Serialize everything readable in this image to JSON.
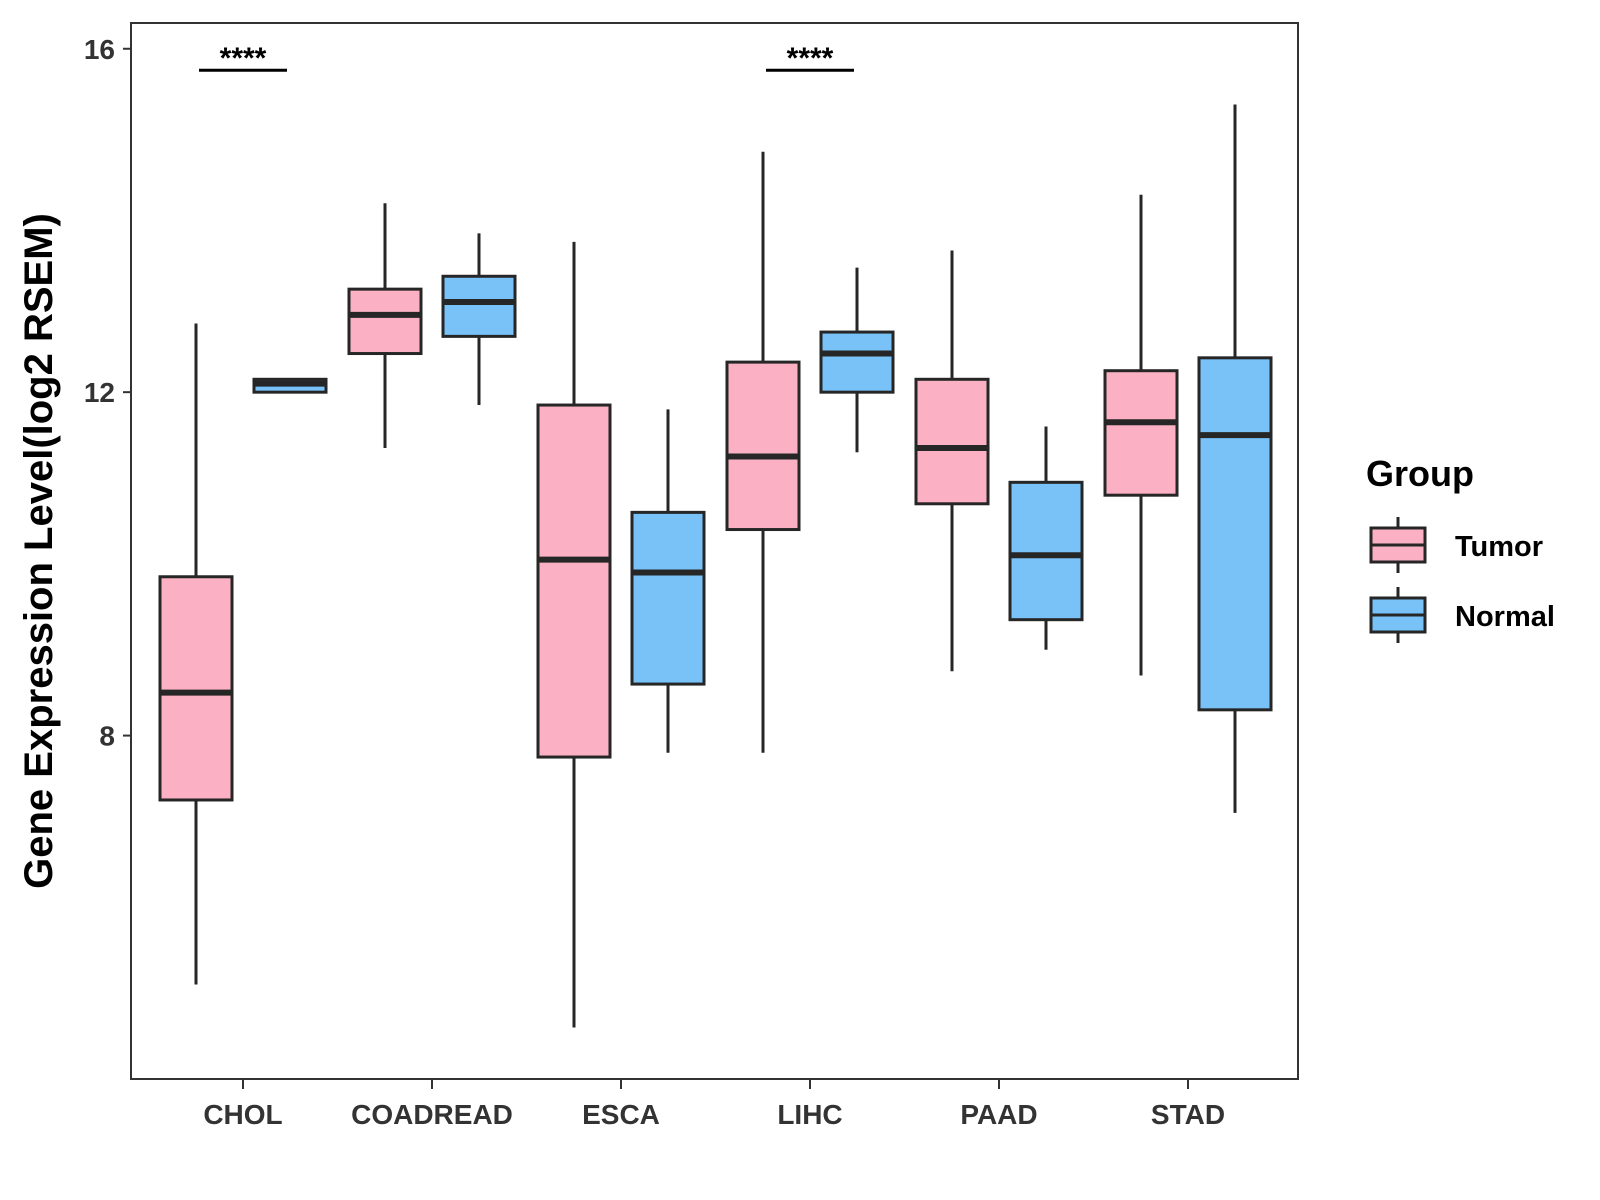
{
  "chart_data": {
    "type": "boxplot",
    "title": "",
    "xlabel": "",
    "ylabel": "Gene Expression Level(log2 RSEM)",
    "ylim": [
      4.0,
      16.3
    ],
    "yticks": [
      8,
      12,
      16
    ],
    "categories": [
      "CHOL",
      "COADREAD",
      "ESCA",
      "LIHC",
      "PAAD",
      "STAD"
    ],
    "legend": {
      "title": "Group",
      "position": "right",
      "entries": [
        {
          "name": "Tumor",
          "color": "#FBB1C3"
        },
        {
          "name": "Normal",
          "color": "#78C2F8"
        }
      ]
    },
    "series": [
      {
        "name": "Tumor",
        "color": "#FBB1C3",
        "boxes": [
          {
            "min": 5.1,
            "q1": 7.25,
            "median": 8.5,
            "q3": 9.85,
            "max": 12.8
          },
          {
            "min": 11.35,
            "q1": 12.45,
            "median": 12.9,
            "q3": 13.2,
            "max": 14.2
          },
          {
            "min": 4.6,
            "q1": 7.75,
            "median": 10.05,
            "q3": 11.85,
            "max": 13.75
          },
          {
            "min": 7.8,
            "q1": 10.4,
            "median": 11.25,
            "q3": 12.35,
            "max": 14.8
          },
          {
            "min": 8.75,
            "q1": 10.7,
            "median": 11.35,
            "q3": 12.15,
            "max": 13.65
          },
          {
            "min": 8.7,
            "q1": 10.8,
            "median": 11.65,
            "q3": 12.25,
            "max": 14.3
          }
        ]
      },
      {
        "name": "Normal",
        "color": "#78C2F8",
        "boxes": [
          {
            "min": 12.0,
            "q1": 12.0,
            "median": 12.1,
            "q3": 12.15,
            "max": 12.15
          },
          {
            "min": 11.85,
            "q1": 12.65,
            "median": 13.05,
            "q3": 13.35,
            "max": 13.85
          },
          {
            "min": 7.8,
            "q1": 8.6,
            "median": 9.9,
            "q3": 10.6,
            "max": 11.8
          },
          {
            "min": 11.3,
            "q1": 12.0,
            "median": 12.45,
            "q3": 12.7,
            "max": 13.45
          },
          {
            "min": 9.0,
            "q1": 9.35,
            "median": 10.1,
            "q3": 10.95,
            "max": 11.6
          },
          {
            "min": 7.1,
            "q1": 8.3,
            "median": 11.5,
            "q3": 12.4,
            "max": 15.35
          }
        ]
      }
    ],
    "significance": [
      {
        "category": "CHOL",
        "label": "****",
        "y": 15.75
      },
      {
        "category": "LIHC",
        "label": "****",
        "y": 15.75
      }
    ]
  }
}
